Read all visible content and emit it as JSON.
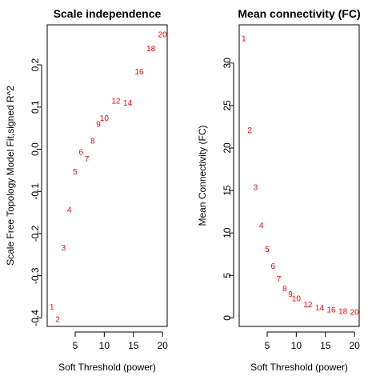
{
  "colors": {
    "point_labels": "#ff0000",
    "frame": "#000000",
    "background": "#ffffff"
  },
  "chart_data": [
    {
      "type": "scatter",
      "title": "Scale independence",
      "xlabel": "Soft Threshold (power)",
      "ylabel": "Scale Free Topology Model Fit,signed R^2",
      "xlim": [
        0.2,
        20.8
      ],
      "ylim": [
        -0.42,
        0.295
      ],
      "xticks": [
        5,
        10,
        15,
        20
      ],
      "yticks": [
        -0.4,
        -0.3,
        -0.2,
        -0.1,
        0.0,
        0.1,
        0.2
      ],
      "ytick_labels": [
        "-0.4",
        "-0.3",
        "-0.2",
        "-0.1",
        "0.0",
        "0.1",
        "0.2"
      ],
      "marker": "text labels (power value)",
      "points": [
        {
          "label": "1",
          "x": 1,
          "y": -0.375
        },
        {
          "label": "2",
          "x": 2,
          "y": -0.405
        },
        {
          "label": "3",
          "x": 3,
          "y": -0.235
        },
        {
          "label": "4",
          "x": 4,
          "y": -0.145
        },
        {
          "label": "5",
          "x": 5,
          "y": -0.055
        },
        {
          "label": "6",
          "x": 6,
          "y": -0.008
        },
        {
          "label": "7",
          "x": 7,
          "y": -0.025
        },
        {
          "label": "8",
          "x": 8,
          "y": 0.018
        },
        {
          "label": "9",
          "x": 9,
          "y": 0.058
        },
        {
          "label": "10",
          "x": 10,
          "y": 0.072
        },
        {
          "label": "12",
          "x": 12,
          "y": 0.113
        },
        {
          "label": "14",
          "x": 14,
          "y": 0.108
        },
        {
          "label": "16",
          "x": 16,
          "y": 0.182
        },
        {
          "label": "18",
          "x": 18,
          "y": 0.237
        },
        {
          "label": "20",
          "x": 20,
          "y": 0.27
        }
      ]
    },
    {
      "type": "scatter",
      "title": "Mean connectivity (FC)",
      "xlabel": "Soft Threshold (power)",
      "ylabel": "Mean Connectivity (FC)",
      "xlim": [
        0.2,
        20.8
      ],
      "ylim": [
        -1.0,
        34.5
      ],
      "xticks": [
        5,
        10,
        15,
        20
      ],
      "yticks": [
        0,
        5,
        10,
        15,
        20,
        25,
        30
      ],
      "ytick_labels": [
        "0",
        "5",
        "10",
        "15",
        "20",
        "25",
        "30"
      ],
      "marker": "text labels (power value)",
      "points": [
        {
          "label": "1",
          "x": 1,
          "y": 32.8
        },
        {
          "label": "2",
          "x": 2,
          "y": 22.0
        },
        {
          "label": "3",
          "x": 3,
          "y": 15.3
        },
        {
          "label": "4",
          "x": 4,
          "y": 10.8
        },
        {
          "label": "5",
          "x": 5,
          "y": 8.0
        },
        {
          "label": "6",
          "x": 6,
          "y": 6.0
        },
        {
          "label": "7",
          "x": 7,
          "y": 4.5
        },
        {
          "label": "8",
          "x": 8,
          "y": 3.4
        },
        {
          "label": "9",
          "x": 9,
          "y": 2.7
        },
        {
          "label": "10",
          "x": 10,
          "y": 2.2
        },
        {
          "label": "12",
          "x": 12,
          "y": 1.5
        },
        {
          "label": "14",
          "x": 14,
          "y": 1.1
        },
        {
          "label": "16",
          "x": 16,
          "y": 0.9
        },
        {
          "label": "18",
          "x": 18,
          "y": 0.7
        },
        {
          "label": "20",
          "x": 20,
          "y": 0.6
        }
      ]
    }
  ]
}
